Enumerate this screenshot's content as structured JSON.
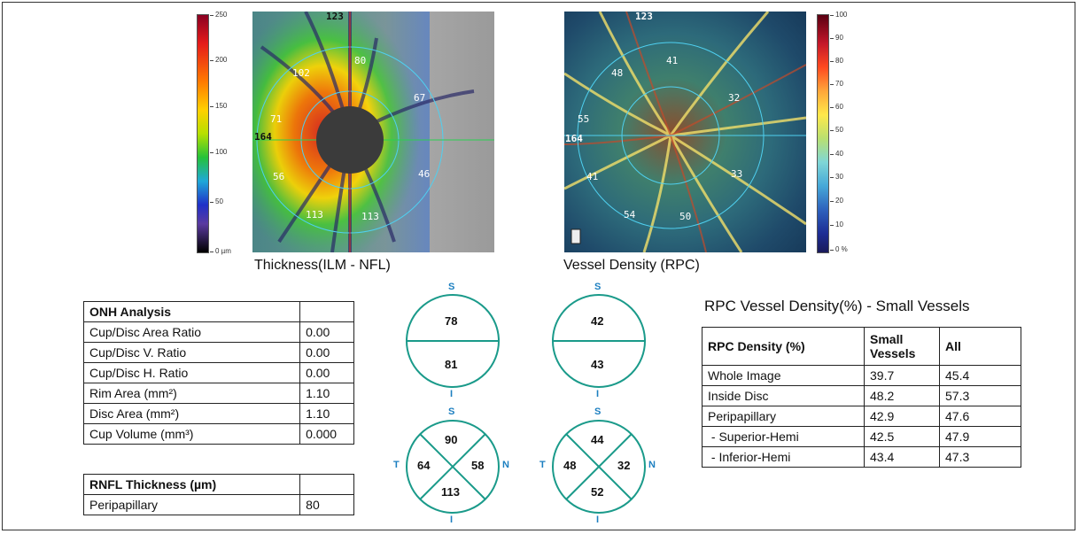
{
  "maps": {
    "thickness": {
      "caption": "Thickness(ILM - NFL)",
      "scale_ticks": [
        "250",
        "200",
        "150",
        "100",
        "50",
        "0 µm"
      ],
      "corner_top": "123",
      "corner_left": "164",
      "sectors": [
        "102",
        "80",
        "67",
        "71",
        "56",
        "46",
        "113",
        "113"
      ]
    },
    "vessel": {
      "caption": "Vessel Density (RPC)",
      "scale_ticks": [
        "100",
        "90",
        "80",
        "70",
        "60",
        "50",
        "40",
        "30",
        "20",
        "10",
        "0 %"
      ],
      "corner_top": "123",
      "corner_left": "164",
      "sectors": [
        "48",
        "41",
        "32",
        "55",
        "41",
        "33",
        "54",
        "50"
      ]
    }
  },
  "onh": {
    "header": "ONH Analysis",
    "rows": [
      {
        "label": "Cup/Disc Area Ratio",
        "value": "0.00"
      },
      {
        "label": "Cup/Disc V. Ratio",
        "value": "0.00"
      },
      {
        "label": "Cup/Disc H. Ratio",
        "value": "0.00"
      },
      {
        "label": "Rim Area (mm²)",
        "value": "1.10"
      },
      {
        "label": "Disc Area (mm²)",
        "value": "1.10"
      },
      {
        "label": "Cup Volume (mm³)",
        "value": "0.000"
      }
    ]
  },
  "rnfl": {
    "header": "RNFL Thickness (µm)",
    "rows": [
      {
        "label": "Peripapillary",
        "value": "80"
      }
    ]
  },
  "diagrams": {
    "labels": {
      "s": "S",
      "i": "I",
      "t": "T",
      "n": "N"
    },
    "thick_hemi": {
      "top": "78",
      "bottom": "81"
    },
    "vd_hemi": {
      "top": "42",
      "bottom": "43"
    },
    "thick_quad": {
      "top": "90",
      "left": "64",
      "right": "58",
      "bottom": "113"
    },
    "vd_quad": {
      "top": "44",
      "left": "48",
      "right": "32",
      "bottom": "52"
    }
  },
  "rpc": {
    "title": "RPC Vessel Density(%) - Small Vessels",
    "headers": [
      "RPC Density (%)",
      "Small Vessels",
      "All"
    ],
    "rows": [
      {
        "label": "Whole Image",
        "small": "39.7",
        "all": "45.4"
      },
      {
        "label": "Inside Disc",
        "small": "48.2",
        "all": "57.3"
      },
      {
        "label": "Peripapillary",
        "small": "42.9",
        "all": "47.6"
      },
      {
        "label": " - Superior-Hemi",
        "small": "42.5",
        "all": "47.9"
      },
      {
        "label": " - Inferior-Hemi",
        "small": "43.4",
        "all": "47.3"
      }
    ]
  }
}
